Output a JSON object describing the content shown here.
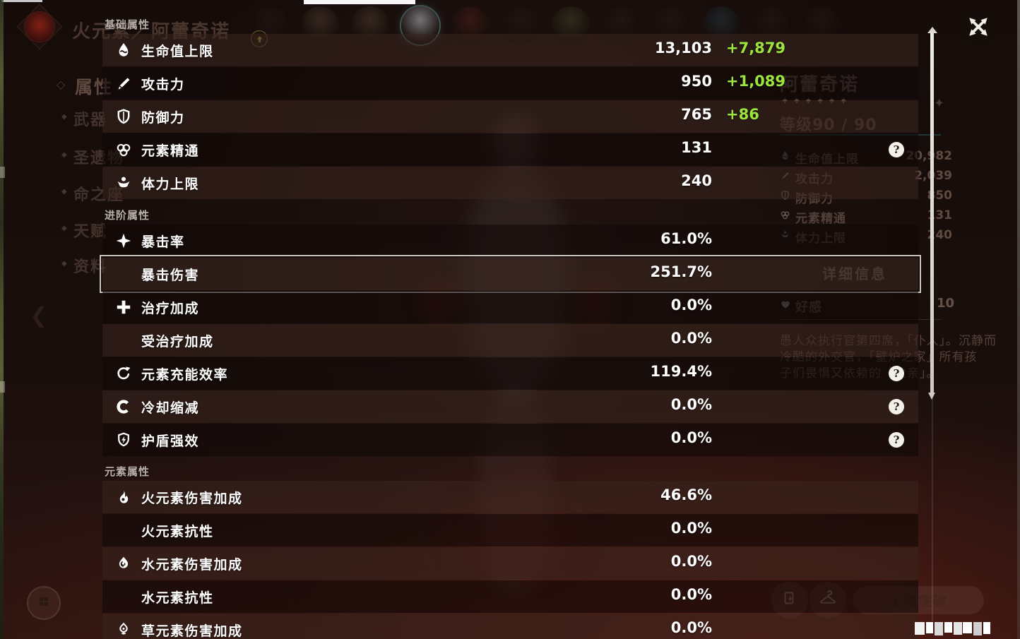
{
  "overlay": {
    "sections": [
      {
        "header": "基础属性",
        "rows": [
          {
            "icon": "hp-icon",
            "label": "生命值上限",
            "value": "13,103",
            "bonus": "+7,879"
          },
          {
            "icon": "atk-icon",
            "label": "攻击力",
            "value": "950",
            "bonus": "+1,089"
          },
          {
            "icon": "def-icon",
            "label": "防御力",
            "value": "765",
            "bonus": "+86"
          },
          {
            "icon": "em-icon",
            "label": "元素精通",
            "value": "131",
            "help": true
          },
          {
            "icon": "stamina-icon",
            "label": "体力上限",
            "value": "240"
          }
        ]
      },
      {
        "header": "进阶属性",
        "rows": [
          {
            "icon": "crit-rate-icon",
            "label": "暴击率",
            "value": "61.0%"
          },
          {
            "icon": "",
            "label": "暴击伤害",
            "value": "251.7%",
            "selected": true
          },
          {
            "icon": "healing-icon",
            "label": "治疗加成",
            "value": "0.0%"
          },
          {
            "icon": "",
            "label": "受治疗加成",
            "value": "0.0%"
          },
          {
            "icon": "energy-recharge-icon",
            "label": "元素充能效率",
            "value": "119.4%",
            "help": true
          },
          {
            "icon": "cooldown-icon",
            "label": "冷却缩减",
            "value": "0.0%",
            "help": true
          },
          {
            "icon": "shield-strength-icon",
            "label": "护盾强效",
            "value": "0.0%",
            "help": true
          }
        ]
      },
      {
        "header": "元素属性",
        "rows": [
          {
            "icon": "pyro-icon",
            "label": "火元素伤害加成",
            "value": "46.6%"
          },
          {
            "icon": "",
            "label": "火元素抗性",
            "value": "0.0%"
          },
          {
            "icon": "hydro-icon",
            "label": "水元素伤害加成",
            "value": "0.0%"
          },
          {
            "icon": "",
            "label": "水元素抗性",
            "value": "0.0%"
          },
          {
            "icon": "dendro-icon",
            "label": "草元素伤害加成",
            "value": "0.0%"
          }
        ]
      }
    ]
  },
  "background": {
    "page_title": "火元素／阿蕾奇诺",
    "sidebar": [
      {
        "label": "属性",
        "selected": true
      },
      {
        "label": "武器"
      },
      {
        "label": "圣遗物"
      },
      {
        "label": "命之座"
      },
      {
        "label": "天赋"
      },
      {
        "label": "资料"
      }
    ],
    "character": {
      "name": "阿蕾奇诺",
      "stars": 6,
      "level_label": "等级90 / 90"
    },
    "summary_stats": [
      {
        "icon": "hp-icon",
        "label": "生命值上限",
        "value": "20,982"
      },
      {
        "icon": "atk-icon",
        "label": "攻击力",
        "value": "2,039"
      },
      {
        "icon": "def-icon",
        "label": "防御力",
        "value": "850"
      },
      {
        "icon": "em-icon",
        "label": "元素精通",
        "value": "131"
      },
      {
        "icon": "stamina-icon",
        "label": "体力上限",
        "value": "240"
      }
    ],
    "detail_button_label": "详细信息",
    "friendship": {
      "label": "好感",
      "value": "10"
    },
    "description": [
      "愚人众执行官第四席，「仆人」。沉静而",
      "冷酷的外交官，「壁炉之家」所有孩",
      "子们畏惧又依赖的「父亲」。"
    ],
    "ascend_button_label": "上限突破",
    "party_avatars": [
      "dark",
      "blonde",
      "blonde",
      "selected",
      "red",
      "dark",
      "green",
      "dark",
      "dark",
      "blue",
      "dark",
      "dark"
    ]
  },
  "colors": {
    "bonus_green": "#9ce53e",
    "accent_teal": "#2a5a5c"
  }
}
